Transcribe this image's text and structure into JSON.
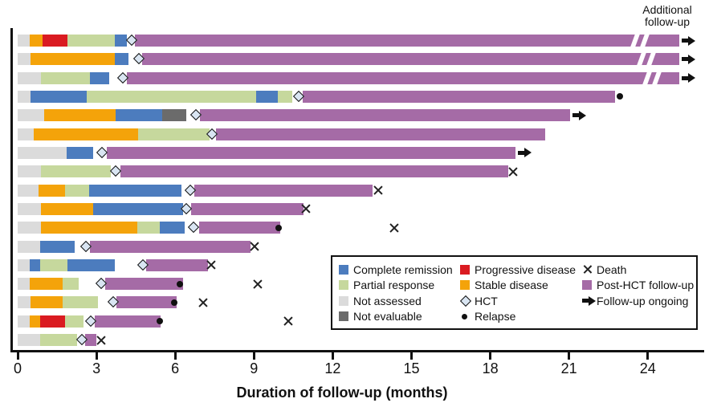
{
  "annotation": "Additional follow-up",
  "colors": {
    "cr": "#4C7CBE",
    "pr": "#C6D89D",
    "na": "#DBDBDB",
    "ne": "#6B6B6B",
    "pd": "#DA1B21",
    "sd": "#F4A30A",
    "post": "#A56BA6",
    "hct_fill": "#D9E5F2",
    "marker_black": "#111111"
  },
  "legend": {
    "columns": [
      [
        {
          "swatch": "cr",
          "label": "Complete remission"
        },
        {
          "swatch": "pr",
          "label": "Partial response"
        },
        {
          "swatch": "na",
          "label": "Not assessed"
        },
        {
          "swatch": "ne",
          "label": "Not evaluable"
        }
      ],
      [
        {
          "swatch": "pd",
          "label": "Progressive disease"
        },
        {
          "swatch": "sd",
          "label": "Stable disease"
        },
        {
          "marker": "diamond",
          "label": "HCT"
        },
        {
          "marker": "dot",
          "label": "Relapse"
        }
      ],
      [
        {
          "marker": "x",
          "label": "Death"
        },
        {
          "swatch": "post",
          "label": "Post-HCT follow-up"
        },
        {
          "marker": "arrow",
          "label": "Follow-up ongoing"
        }
      ]
    ]
  },
  "chart_data": {
    "type": "swimmer",
    "xlabel": "Duration of follow-up (months)",
    "x_ticks": [
      0,
      3,
      6,
      9,
      12,
      15,
      18,
      21,
      24
    ],
    "xlim": [
      0,
      26
    ],
    "status_names": {
      "cr": "Complete remission",
      "pr": "Partial response",
      "na": "Not assessed",
      "ne": "Not evaluable",
      "pd": "Progressive disease",
      "sd": "Stable disease",
      "post": "Post-HCT follow-up"
    },
    "patients": [
      {
        "segments": [
          {
            "status": "na",
            "start": 0,
            "end": 0.45
          },
          {
            "status": "sd",
            "start": 0.45,
            "end": 0.95
          },
          {
            "status": "pd",
            "start": 0.95,
            "end": 1.9
          },
          {
            "status": "pr",
            "start": 1.9,
            "end": 3.7
          },
          {
            "status": "cr",
            "start": 3.7,
            "end": 4.15
          },
          {
            "status": "post",
            "start": 4.45,
            "end": 25.2
          }
        ],
        "hct": 4.35,
        "break_at": 23.7,
        "ongoing": true,
        "relapse": null,
        "death": null
      },
      {
        "segments": [
          {
            "status": "na",
            "start": 0,
            "end": 0.5
          },
          {
            "status": "sd",
            "start": 0.5,
            "end": 3.7
          },
          {
            "status": "cr",
            "start": 3.7,
            "end": 4.22
          },
          {
            "status": "post",
            "start": 4.75,
            "end": 25.2
          }
        ],
        "hct": 4.62,
        "break_at": 23.95,
        "ongoing": true,
        "relapse": null,
        "death": null
      },
      {
        "segments": [
          {
            "status": "na",
            "start": 0,
            "end": 0.9
          },
          {
            "status": "pr",
            "start": 0.9,
            "end": 2.75
          },
          {
            "status": "cr",
            "start": 2.75,
            "end": 3.48
          },
          {
            "status": "post",
            "start": 4.15,
            "end": 25.2
          }
        ],
        "hct": 4.02,
        "break_at": 24.15,
        "ongoing": true,
        "relapse": null,
        "death": null
      },
      {
        "segments": [
          {
            "status": "na",
            "start": 0,
            "end": 0.5
          },
          {
            "status": "cr",
            "start": 0.5,
            "end": 2.62
          },
          {
            "status": "pr",
            "start": 2.62,
            "end": 9.08
          },
          {
            "status": "cr",
            "start": 9.08,
            "end": 9.92
          },
          {
            "status": "pr",
            "start": 9.92,
            "end": 10.45
          },
          {
            "status": "post",
            "start": 10.85,
            "end": 22.75
          }
        ],
        "hct": 10.72,
        "break_at": null,
        "ongoing": false,
        "relapse": 22.95,
        "death": null
      },
      {
        "segments": [
          {
            "status": "na",
            "start": 0,
            "end": 1.02
          },
          {
            "status": "sd",
            "start": 1.02,
            "end": 3.72
          },
          {
            "status": "cr",
            "start": 3.72,
            "end": 5.5
          },
          {
            "status": "ne",
            "start": 5.5,
            "end": 6.42
          },
          {
            "status": "post",
            "start": 6.95,
            "end": 21.05
          }
        ],
        "hct": 6.8,
        "break_at": null,
        "ongoing": true,
        "relapse": null,
        "death": null
      },
      {
        "segments": [
          {
            "status": "na",
            "start": 0,
            "end": 0.6
          },
          {
            "status": "sd",
            "start": 0.6,
            "end": 4.6
          },
          {
            "status": "pr",
            "start": 4.6,
            "end": 7.3
          },
          {
            "status": "post",
            "start": 7.55,
            "end": 20.1
          }
        ],
        "hct": 7.42,
        "break_at": null,
        "ongoing": false,
        "relapse": null,
        "death": null
      },
      {
        "segments": [
          {
            "status": "na",
            "start": 0,
            "end": 1.86
          },
          {
            "status": "cr",
            "start": 1.86,
            "end": 2.87
          },
          {
            "status": "post",
            "start": 3.4,
            "end": 18.95
          }
        ],
        "hct": 3.22,
        "break_at": null,
        "ongoing": true,
        "relapse": null,
        "death": null
      },
      {
        "segments": [
          {
            "status": "na",
            "start": 0,
            "end": 0.9
          },
          {
            "status": "pr",
            "start": 0.9,
            "end": 3.55
          },
          {
            "status": "post",
            "start": 3.9,
            "end": 18.7
          }
        ],
        "hct": 3.75,
        "break_at": null,
        "ongoing": false,
        "relapse": null,
        "death": 18.88
      },
      {
        "segments": [
          {
            "status": "na",
            "start": 0,
            "end": 0.8
          },
          {
            "status": "sd",
            "start": 0.8,
            "end": 1.8
          },
          {
            "status": "pr",
            "start": 1.8,
            "end": 2.72
          },
          {
            "status": "cr",
            "start": 2.72,
            "end": 6.25
          },
          {
            "status": "post",
            "start": 6.72,
            "end": 13.52
          }
        ],
        "hct": 6.58,
        "break_at": null,
        "ongoing": false,
        "relapse": null,
        "death": 13.72
      },
      {
        "segments": [
          {
            "status": "na",
            "start": 0,
            "end": 0.9
          },
          {
            "status": "sd",
            "start": 0.9,
            "end": 2.86
          },
          {
            "status": "cr",
            "start": 2.86,
            "end": 6.3
          },
          {
            "status": "post",
            "start": 6.6,
            "end": 10.9
          }
        ],
        "hct": 6.45,
        "break_at": null,
        "ongoing": false,
        "relapse": null,
        "death": 10.98
      },
      {
        "segments": [
          {
            "status": "na",
            "start": 0,
            "end": 0.9
          },
          {
            "status": "sd",
            "start": 0.9,
            "end": 4.56
          },
          {
            "status": "pr",
            "start": 4.56,
            "end": 5.42
          },
          {
            "status": "cr",
            "start": 5.42,
            "end": 6.36
          },
          {
            "status": "post",
            "start": 6.9,
            "end": 10.0
          }
        ],
        "hct": 6.72,
        "break_at": null,
        "ongoing": false,
        "relapse": 9.93,
        "death": 14.35
      },
      {
        "segments": [
          {
            "status": "na",
            "start": 0,
            "end": 0.85
          },
          {
            "status": "cr",
            "start": 0.85,
            "end": 2.16
          },
          {
            "status": "post",
            "start": 2.76,
            "end": 8.86
          }
        ],
        "hct": 2.6,
        "break_at": null,
        "ongoing": false,
        "relapse": null,
        "death": 9.03
      },
      {
        "segments": [
          {
            "status": "na",
            "start": 0,
            "end": 0.46
          },
          {
            "status": "cr",
            "start": 0.46,
            "end": 0.86
          },
          {
            "status": "pr",
            "start": 0.86,
            "end": 1.9
          },
          {
            "status": "cr",
            "start": 1.9,
            "end": 3.7
          },
          {
            "status": "post",
            "start": 4.9,
            "end": 7.25
          }
        ],
        "hct": 4.8,
        "break_at": null,
        "ongoing": false,
        "relapse": null,
        "death": 7.36
      },
      {
        "segments": [
          {
            "status": "na",
            "start": 0,
            "end": 0.46
          },
          {
            "status": "sd",
            "start": 0.46,
            "end": 1.72
          },
          {
            "status": "pr",
            "start": 1.72,
            "end": 2.32
          },
          {
            "status": "post",
            "start": 3.32,
            "end": 6.3
          }
        ],
        "hct": 3.2,
        "break_at": null,
        "ongoing": false,
        "relapse": 6.18,
        "death": 9.15
      },
      {
        "segments": [
          {
            "status": "na",
            "start": 0,
            "end": 0.5
          },
          {
            "status": "sd",
            "start": 0.5,
            "end": 1.7
          },
          {
            "status": "pr",
            "start": 1.7,
            "end": 3.05
          },
          {
            "status": "post",
            "start": 3.76,
            "end": 6.05
          }
        ],
        "hct": 3.65,
        "break_at": null,
        "ongoing": false,
        "relapse": 5.95,
        "death": 7.05
      },
      {
        "segments": [
          {
            "status": "na",
            "start": 0,
            "end": 0.46
          },
          {
            "status": "sd",
            "start": 0.46,
            "end": 0.86
          },
          {
            "status": "pd",
            "start": 0.86,
            "end": 1.8
          },
          {
            "status": "pr",
            "start": 1.8,
            "end": 2.52
          },
          {
            "status": "post",
            "start": 2.93,
            "end": 5.45
          }
        ],
        "hct": 2.8,
        "break_at": null,
        "ongoing": false,
        "relapse": 5.42,
        "death": 10.3
      },
      {
        "segments": [
          {
            "status": "na",
            "start": 0,
            "end": 0.86
          },
          {
            "status": "pr",
            "start": 0.86,
            "end": 2.26
          },
          {
            "status": "post",
            "start": 2.56,
            "end": 3.0
          }
        ],
        "hct": 2.45,
        "break_at": null,
        "ongoing": false,
        "relapse": null,
        "death": 3.17
      }
    ]
  }
}
